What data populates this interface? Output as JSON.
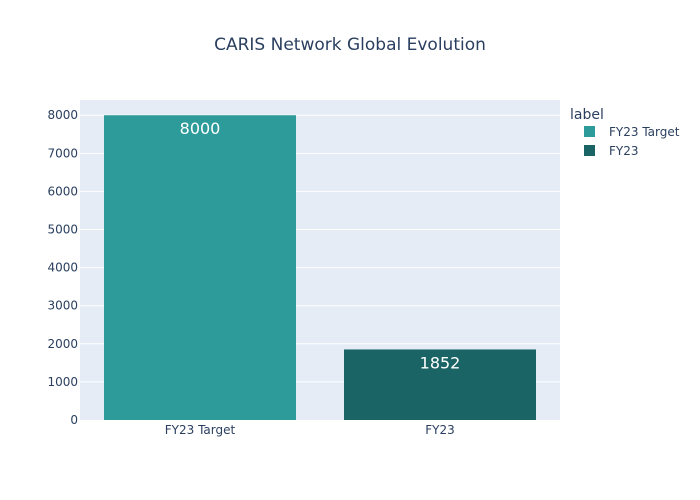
{
  "chart_data": {
    "type": "bar",
    "title": "CARIS Network Global Evolution",
    "xlabel": "",
    "ylabel": "",
    "categories": [
      "FY23 Target",
      "FY23"
    ],
    "values": [
      8000,
      1852
    ],
    "data_labels": [
      "8000",
      "1852"
    ],
    "colors": [
      "#2e9b9b",
      "#1a6466"
    ],
    "ylim": [
      0,
      8400
    ],
    "yticks": [
      0,
      1000,
      2000,
      3000,
      4000,
      5000,
      6000,
      7000,
      8000
    ],
    "grid": true,
    "legend": {
      "title": "label",
      "position": "top-right",
      "entries": [
        "FY23 Target",
        "FY23"
      ]
    }
  },
  "colors": {
    "plot_background": "#e5ecf6",
    "grid": "#ffffff",
    "text": "#2a3f5f"
  }
}
